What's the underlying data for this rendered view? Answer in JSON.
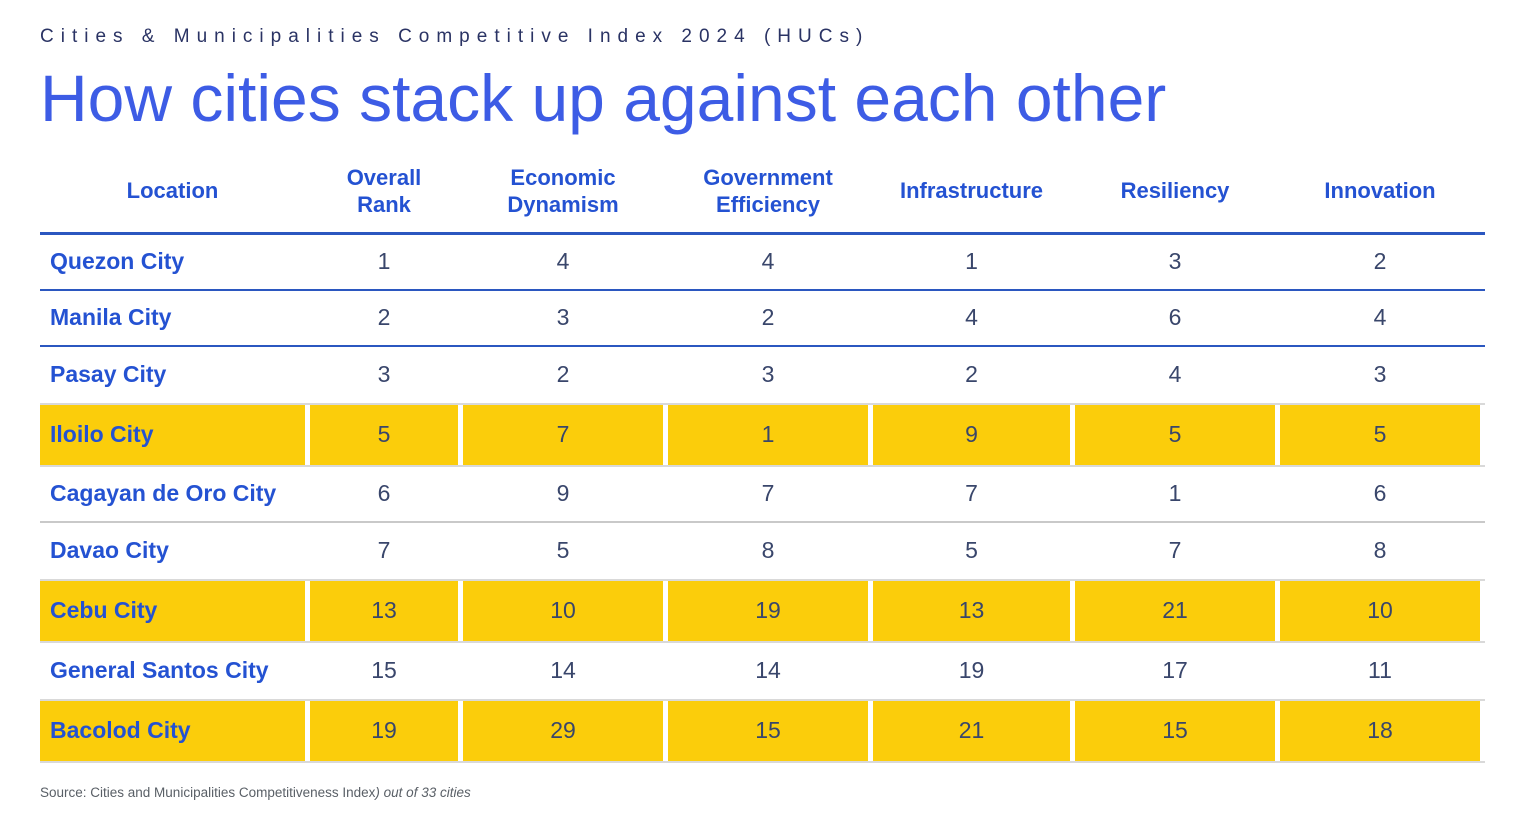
{
  "kicker": "Cities & Municipalities Competitive Index 2024 (HUCs)",
  "title": "How cities stack up against each other",
  "source": {
    "prefix": "Source: Cities and Municipalities Competitiveness Index",
    "italic": ") out of 33 cities"
  },
  "colors": {
    "highlight_yellow": "#FBCD0B",
    "header_blue": "#2452D2",
    "title_blue": "#3D5CE5",
    "kicker_navy": "#2A3364",
    "number_navy": "#39466B",
    "blue_separator": "#2B57C0",
    "gray_separator": "#C9C9C9"
  },
  "chart_data": {
    "type": "table",
    "title": "How cities stack up against each other",
    "subtitle": "Cities & Municipalities Competitive Index 2024 (HUCs)",
    "columns": [
      "Location",
      "Overall\nRank",
      "Economic\nDynamism",
      "Government\nEfficiency",
      "Infrastructure",
      "Resiliency",
      "Innovation"
    ],
    "rows": [
      {
        "location": "Quezon City",
        "values": [
          1,
          4,
          4,
          1,
          3,
          2
        ],
        "highlighted": false
      },
      {
        "location": "Manila City",
        "values": [
          2,
          3,
          2,
          4,
          6,
          4
        ],
        "highlighted": false
      },
      {
        "location": "Pasay City",
        "values": [
          3,
          2,
          3,
          2,
          4,
          3
        ],
        "highlighted": false
      },
      {
        "location": "Iloilo City",
        "values": [
          5,
          7,
          1,
          9,
          5,
          5
        ],
        "highlighted": true
      },
      {
        "location": "Cagayan de Oro City",
        "values": [
          6,
          9,
          7,
          7,
          1,
          6
        ],
        "highlighted": false
      },
      {
        "location": "Davao City",
        "values": [
          7,
          5,
          8,
          5,
          7,
          8
        ],
        "highlighted": false
      },
      {
        "location": "Cebu City",
        "values": [
          13,
          10,
          19,
          13,
          21,
          10
        ],
        "highlighted": true
      },
      {
        "location": "General Santos City",
        "values": [
          15,
          14,
          14,
          19,
          17,
          11
        ],
        "highlighted": false
      },
      {
        "location": "Bacolod City",
        "values": [
          19,
          29,
          15,
          21,
          15,
          18
        ],
        "highlighted": true
      }
    ],
    "highlighted_rows": [
      "Iloilo City",
      "Cebu City",
      "Bacolod City"
    ],
    "note": "out of 33 cities"
  }
}
